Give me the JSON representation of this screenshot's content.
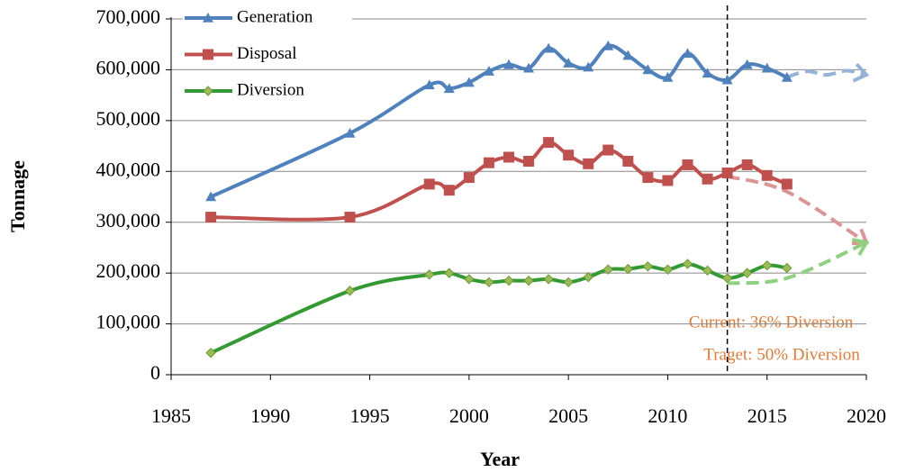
{
  "chart_data": {
    "type": "line",
    "x_label": "Year",
    "y_label": "Tonnage",
    "x": [
      1987,
      1994,
      1998,
      1999,
      2000,
      2001,
      2002,
      2003,
      2004,
      2005,
      2006,
      2007,
      2008,
      2009,
      2010,
      2011,
      2012,
      2013,
      2014,
      2015,
      2016
    ],
    "series": [
      {
        "name": "Generation",
        "color": "#4f81bd",
        "marker": "triangle",
        "values": [
          350000,
          475000,
          570000,
          563000,
          575000,
          597000,
          610000,
          603000,
          642000,
          613000,
          605000,
          647000,
          628000,
          600000,
          585000,
          632000,
          593000,
          580000,
          610000,
          603000,
          585000
        ]
      },
      {
        "name": "Disposal",
        "color": "#c0504d",
        "marker": "square",
        "values": [
          310000,
          310000,
          375000,
          363000,
          388000,
          417000,
          428000,
          420000,
          457000,
          432000,
          415000,
          442000,
          420000,
          388000,
          382000,
          413000,
          385000,
          397000,
          413000,
          392000,
          375000
        ]
      },
      {
        "name": "Diversion",
        "color": "#339933",
        "marker": "diamond",
        "marker_color": "#9bbb59",
        "values": [
          43000,
          165000,
          197000,
          200000,
          188000,
          182000,
          185000,
          185000,
          188000,
          182000,
          192000,
          207000,
          208000,
          213000,
          207000,
          218000,
          205000,
          190000,
          200000,
          215000,
          210000
        ]
      }
    ],
    "projections": [
      {
        "color": "#95b3d7",
        "x": [
          2016,
          2017,
          2018,
          2019,
          2020
        ],
        "values": [
          585000,
          597000,
          590000,
          598000,
          590000
        ]
      },
      {
        "color": "#d99694",
        "x": [
          2013,
          2016,
          2020
        ],
        "values": [
          390000,
          360000,
          260000
        ]
      },
      {
        "color": "#8fd17f",
        "x": [
          2013,
          2016,
          2020
        ],
        "values": [
          180000,
          190000,
          260000
        ]
      }
    ],
    "vline": 2013,
    "annotations": [
      "Current: 36% Diversion",
      "Traget: 50% Diversion"
    ],
    "xlim": [
      1985,
      2020
    ],
    "xticks": [
      1985,
      1990,
      1995,
      2000,
      2005,
      2010,
      2015,
      2020
    ],
    "ylim": [
      0,
      700000
    ],
    "yticks": [
      0,
      {
        "value": 100000,
        "label": "100,000"
      },
      {
        "value": 200000,
        "label": "200,000"
      },
      {
        "value": 300000,
        "label": "300,000"
      },
      {
        "value": 400000,
        "label": "400,000"
      },
      {
        "value": 500000,
        "label": "500,000"
      },
      {
        "value": 600000,
        "label": "600,000"
      },
      {
        "value": 700000,
        "label": "700,000"
      }
    ],
    "grid": true,
    "legend": "upper left"
  }
}
